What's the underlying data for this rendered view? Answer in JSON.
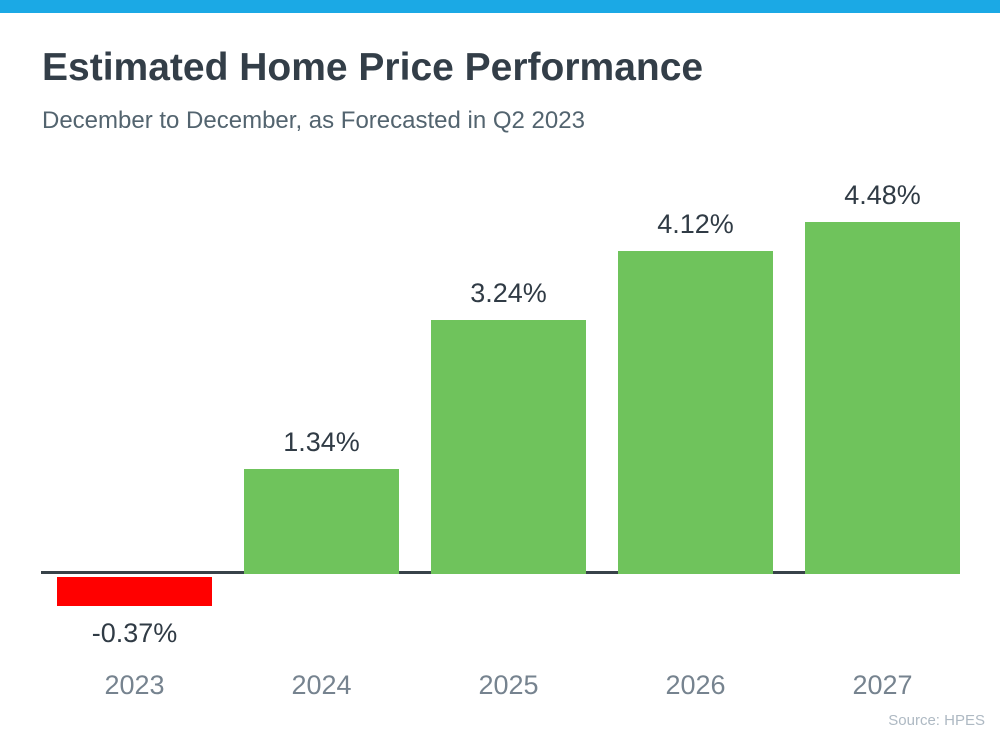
{
  "page": {
    "accent_color": "#1BA9E5",
    "background": "#FFFFFF"
  },
  "header": {
    "title": "Estimated Home Price Performance",
    "subtitle": "December to December, as Forecasted in Q2 2023"
  },
  "chart_data": {
    "type": "bar",
    "categories": [
      "2023",
      "2024",
      "2025",
      "2026",
      "2027"
    ],
    "values": [
      -0.37,
      1.34,
      3.24,
      4.12,
      4.48
    ],
    "value_labels": [
      "-0.37%",
      "1.34%",
      "3.24%",
      "4.12%",
      "4.48%"
    ],
    "title": "Estimated Home Price Performance",
    "subtitle": "December to December, as Forecasted in Q2 2023",
    "xlabel": "",
    "ylabel": "",
    "ylim": [
      -0.75,
      5.0
    ],
    "grid": false,
    "legend": false,
    "positive_bar_color": "#6FC35C",
    "negative_bar_color": "#FF0000",
    "axis_line_color": "#384249",
    "value_label_color": "#303B45",
    "category_label_color": "#76838F"
  },
  "footer": {
    "source_label": "Source: HPES",
    "source_color": "#AEB9C3"
  }
}
